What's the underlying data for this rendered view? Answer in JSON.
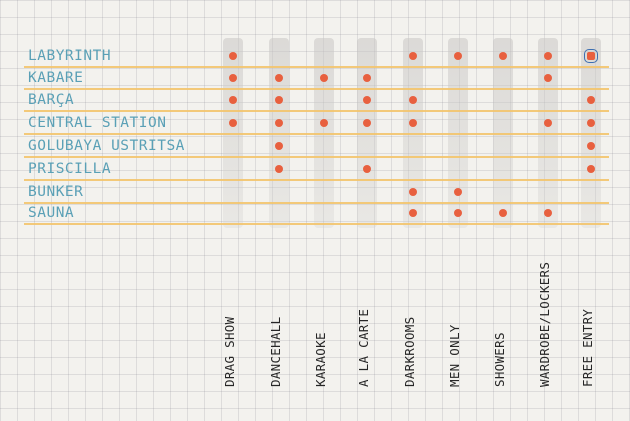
{
  "venues": [
    "LABYRINTH",
    "KABARE",
    "BARÇA",
    "CENTRAL STATION",
    "GOLUBAYA USTRITSA",
    "PRISCILLA",
    "BUNKER",
    "SAUNA"
  ],
  "features": [
    "DRAG SHOW",
    "DANCEHALL",
    "KARAOKE",
    "A LA CARTE",
    "DARKROOMS",
    "MEN ONLY",
    "SHOWERS",
    "WARDROBE/LOCKERS",
    "FREE ENTRY"
  ],
  "matrix": [
    [
      1,
      0,
      0,
      0,
      1,
      1,
      1,
      1,
      1
    ],
    [
      1,
      1,
      1,
      1,
      0,
      0,
      0,
      1,
      0
    ],
    [
      1,
      1,
      0,
      1,
      1,
      0,
      0,
      0,
      1
    ],
    [
      1,
      1,
      1,
      1,
      1,
      0,
      0,
      1,
      1
    ],
    [
      0,
      1,
      0,
      0,
      0,
      0,
      0,
      0,
      1
    ],
    [
      0,
      1,
      0,
      1,
      0,
      0,
      0,
      0,
      1
    ],
    [
      0,
      0,
      0,
      0,
      1,
      1,
      0,
      0,
      0
    ],
    [
      0,
      0,
      0,
      0,
      1,
      1,
      1,
      1,
      0
    ]
  ],
  "highlight": {
    "venue": "LABYRINTH",
    "feature": "FREE ENTRY"
  },
  "colors": {
    "background": "#f3f2ee",
    "grid": "#c9c9cf",
    "row_line": "#f3c46c",
    "column_band": "#d0cecc",
    "dot": "#e8603f",
    "venue_label": "#5aa0b6",
    "feature_label": "#262626",
    "highlight_box": "#3e6fb0"
  }
}
